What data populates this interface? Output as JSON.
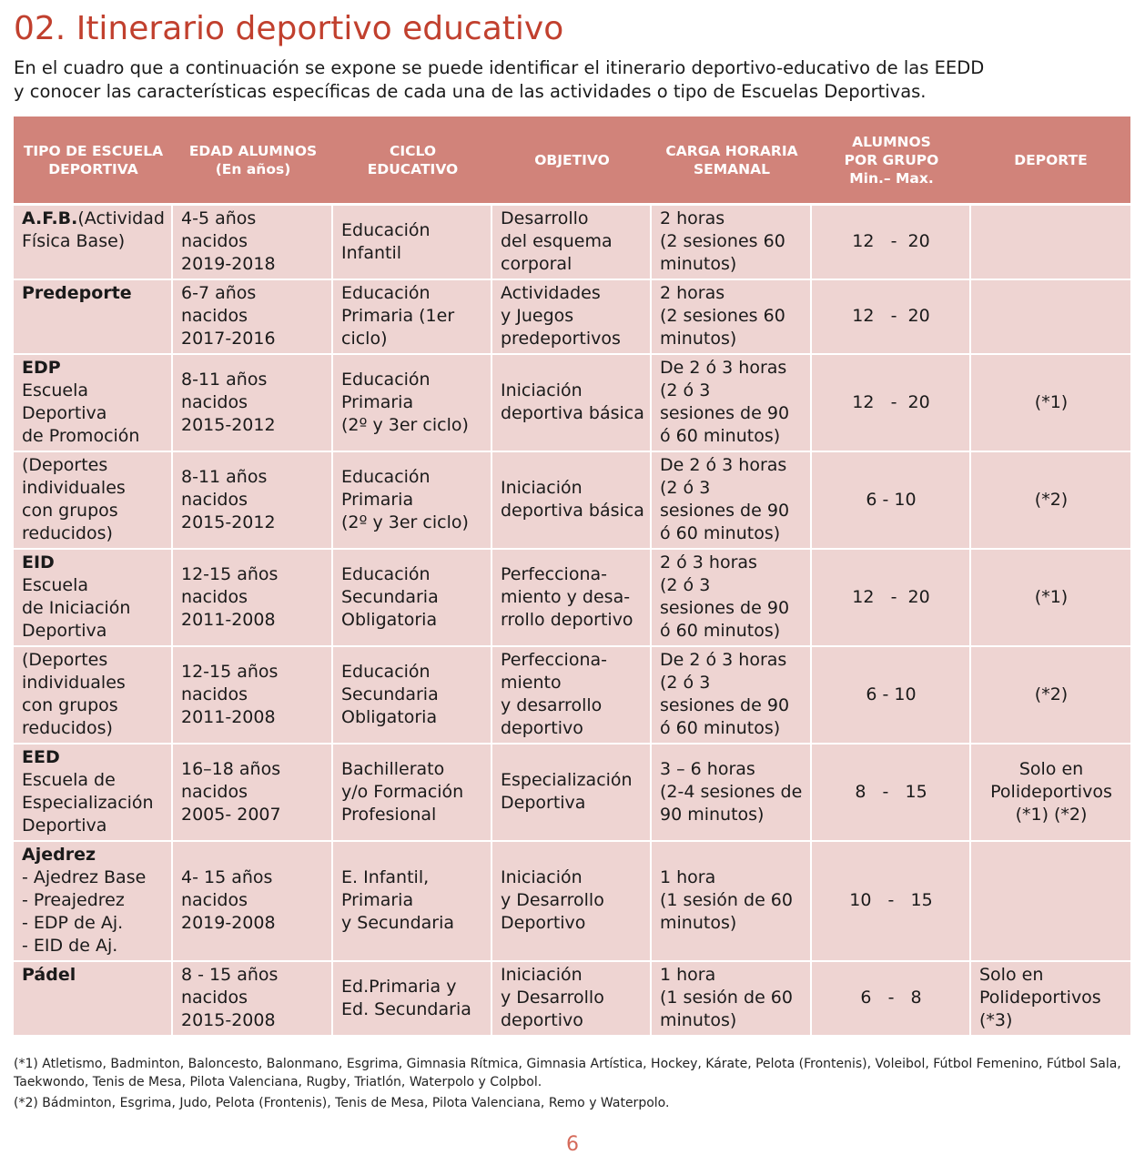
{
  "title": "02. Itinerario deportivo educativo",
  "intro": [
    "En el cuadro que a continuación se expone se puede identificar el itinerario deportivo-educativo de las EEDD",
    "y conocer las características específicas de cada una de las actividades o tipo de Escuelas Deportivas."
  ],
  "table": {
    "header_color": "#d1837a",
    "cell_color": "#eed4d2",
    "headers": [
      [
        "TIPO DE ESCUELA",
        "DEPORTIVA"
      ],
      [
        "EDAD ALUMNOS",
        "(En años)"
      ],
      [
        "CICLO",
        "EDUCATIVO"
      ],
      [
        "OBJETIVO"
      ],
      [
        "CARGA HORARIA",
        "SEMANAL"
      ],
      [
        "ALUMNOS",
        "POR GRUPO",
        "Min.– Max."
      ],
      [
        "DEPORTE"
      ]
    ],
    "rows": [
      {
        "tipo_bold": "A.F.B.",
        "tipo": [
          "(Actividad",
          "Física Base)"
        ],
        "edad": [
          "4-5 años",
          "nacidos",
          "2019-2018"
        ],
        "ciclo": [
          "Educación",
          "Infantil"
        ],
        "objetivo": [
          "Desarrollo",
          "del esquema",
          "corporal"
        ],
        "carga": [
          "2 horas",
          "(2 sesiones 60",
          "minutos)"
        ],
        "alumnos": "12   -  20",
        "deporte": []
      },
      {
        "tipo_bold": "Predeporte",
        "tipo": [],
        "edad": [
          "6-7 años",
          "nacidos",
          "2017-2016"
        ],
        "ciclo": [
          "Educación",
          "Primaria (1er",
          "ciclo)"
        ],
        "objetivo": [
          "Actividades",
          "y Juegos",
          "predeportivos"
        ],
        "carga": [
          "2 horas",
          "(2 sesiones 60",
          "minutos)"
        ],
        "alumnos": "12   -  20",
        "deporte": []
      },
      {
        "tipo_bold": "EDP",
        "tipo": [
          "Escuela",
          "Deportiva",
          "de Promoción"
        ],
        "edad": [
          "8-11 años",
          "nacidos",
          "2015-2012"
        ],
        "ciclo": [
          "Educación",
          "Primaria",
          "(2º y 3er ciclo)"
        ],
        "objetivo": [
          "Iniciación",
          "deportiva básica"
        ],
        "carga": [
          "De 2 ó 3 horas",
          "(2 ó 3",
          "sesiones de 90",
          "ó 60 minutos)"
        ],
        "alumnos": "12   -  20",
        "deporte": [
          "(*1)"
        ]
      },
      {
        "tipo_bold": "",
        "tipo": [
          "(Deportes",
          "individuales",
          "con grupos",
          "reducidos)"
        ],
        "edad": [
          "8-11 años",
          "nacidos",
          "2015-2012"
        ],
        "ciclo": [
          "Educación",
          "Primaria",
          "(2º y 3er ciclo)"
        ],
        "objetivo": [
          "Iniciación",
          "deportiva básica"
        ],
        "carga": [
          "De 2 ó 3 horas",
          "(2 ó 3",
          "sesiones de 90",
          "ó 60 minutos)"
        ],
        "alumnos": "6 - 10",
        "deporte": [
          "(*2)"
        ]
      },
      {
        "tipo_bold": "EID",
        "tipo": [
          "Escuela",
          "de Iniciación",
          "Deportiva"
        ],
        "edad": [
          "12-15 años",
          "nacidos",
          "2011-2008"
        ],
        "ciclo": [
          "Educación",
          "Secundaria",
          "Obligatoria"
        ],
        "objetivo": [
          "Perfecciona-",
          "miento y desa-",
          "rrollo deportivo"
        ],
        "carga": [
          "2 ó 3 horas",
          "(2 ó 3",
          "sesiones de 90",
          "ó 60 minutos)"
        ],
        "alumnos": "12   -  20",
        "deporte": [
          "(*1)"
        ]
      },
      {
        "tipo_bold": "",
        "tipo": [
          "(Deportes",
          "individuales",
          "con grupos",
          "reducidos)"
        ],
        "edad": [
          "12-15 años",
          "nacidos",
          "2011-2008"
        ],
        "ciclo": [
          "Educación",
          "Secundaria",
          "Obligatoria"
        ],
        "objetivo": [
          "Perfecciona-",
          "miento",
          "y desarrollo",
          "deportivo"
        ],
        "carga": [
          "De 2 ó 3 horas",
          "(2 ó 3",
          "sesiones de 90",
          "ó 60 minutos)"
        ],
        "alumnos": "6 - 10",
        "deporte": [
          "(*2)"
        ]
      },
      {
        "tipo_bold": "EED",
        "tipo": [
          "Escuela de",
          "Especialización",
          "Deportiva"
        ],
        "edad": [
          "16–18 años",
          "nacidos",
          "2005- 2007"
        ],
        "ciclo": [
          "Bachillerato",
          "y/o Formación",
          "Profesional"
        ],
        "objetivo": [
          "Especialización",
          "Deportiva"
        ],
        "carga": [
          "3 – 6 horas",
          "(2-4 sesiones de",
          "90 minutos)"
        ],
        "alumnos": "8   -   15",
        "deporte": [
          "Solo en",
          "Polideportivos",
          "(*1) (*2)"
        ]
      },
      {
        "tipo_bold": "Ajedrez",
        "tipo": [
          "- Ajedrez Base",
          "- Preajedrez",
          "- EDP de Aj.",
          "- EID de Aj."
        ],
        "edad": [
          "4- 15 años",
          "nacidos",
          "2019-2008"
        ],
        "ciclo": [
          "E. Infantil,",
          "Primaria",
          "y Secundaria"
        ],
        "objetivo": [
          "Iniciación",
          "y Desarrollo",
          "Deportivo"
        ],
        "carga": [
          "1 hora",
          "(1 sesión de 60",
          "minutos)"
        ],
        "alumnos": "10   -   15",
        "deporte": []
      },
      {
        "tipo_bold": "Pádel",
        "tipo": [],
        "edad": [
          "8 - 15 años",
          "nacidos",
          "2015-2008"
        ],
        "ciclo": [
          "Ed.Primaria y",
          "Ed. Secundaria"
        ],
        "objetivo": [
          "Iniciación",
          "y Desarrollo",
          "deportivo"
        ],
        "carga": [
          "1 hora",
          "(1 sesión de 60",
          "minutos)"
        ],
        "alumnos": "6   -   8",
        "deporte": [
          "Solo en",
          "Polideportivos",
          "(*3)"
        ],
        "deporte_left": true
      }
    ]
  },
  "footnotes": [
    "(*1) Atletismo, Badminton, Baloncesto, Balonmano, Esgrima, Gimnasia Rítmica, Gimnasia Artística, Hockey, Kárate, Pelota (Frontenis), Voleibol, Fútbol Femenino, Fútbol Sala, Taekwondo, Tenis de Mesa, Pilota Valenciana, Rugby, Triatlón, Waterpolo y Colpbol.",
    "(*2) Bádminton, Esgrima, Judo, Pelota (Frontenis), Tenis de Mesa, Pilota Valenciana, Remo y Waterpolo."
  ],
  "page_number": "6"
}
